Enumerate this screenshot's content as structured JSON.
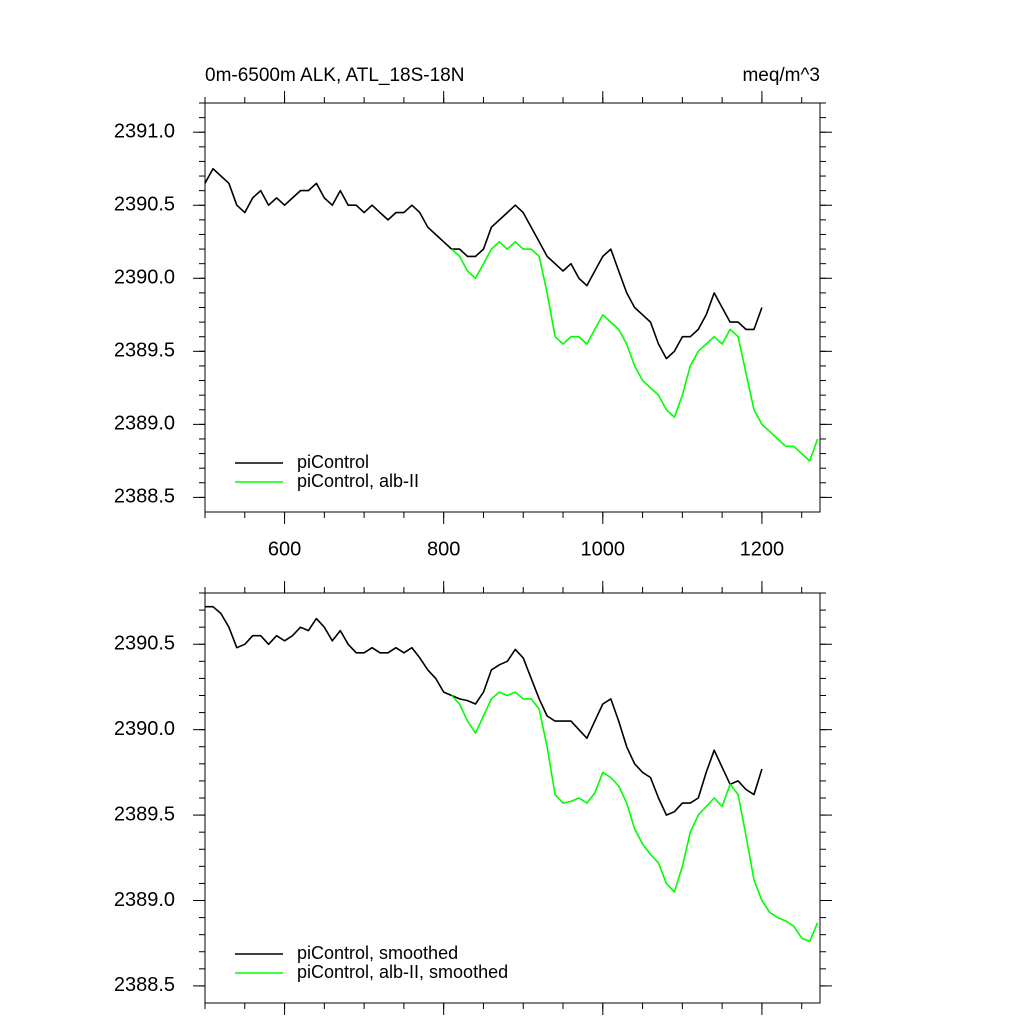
{
  "chart_data": [
    {
      "type": "line",
      "title": "0m-6500m ALK, ATL_18S-18N",
      "units": "meq/m^3",
      "xlim": [
        500,
        1273
      ],
      "ylim": [
        2388.4,
        2391.2
      ],
      "xticks": [
        600,
        800,
        1000,
        1200
      ],
      "x_tick_labels": true,
      "yticks": [
        {
          "value": 2388.5,
          "label": "2388.5"
        },
        {
          "value": 2389.0,
          "label": "2389.0"
        },
        {
          "value": 2389.5,
          "label": "2389.5"
        },
        {
          "value": 2390.0,
          "label": "2390.0"
        },
        {
          "value": 2390.5,
          "label": "2390.5"
        },
        {
          "value": 2391.0,
          "label": "2391.0"
        }
      ],
      "legend": "lower left",
      "series": [
        {
          "name": "piControl",
          "color": "#000000",
          "x": [
            500,
            510,
            520,
            530,
            540,
            550,
            560,
            570,
            580,
            590,
            600,
            610,
            620,
            630,
            640,
            650,
            660,
            670,
            680,
            690,
            700,
            710,
            720,
            730,
            740,
            750,
            760,
            770,
            780,
            790,
            800,
            810,
            820,
            830,
            840,
            850,
            860,
            870,
            880,
            890,
            900,
            910,
            920,
            930,
            940,
            950,
            960,
            970,
            980,
            990,
            1000,
            1010,
            1020,
            1030,
            1040,
            1050,
            1060,
            1070,
            1080,
            1090,
            1100,
            1110,
            1120,
            1130,
            1140,
            1150,
            1160,
            1170,
            1180,
            1190,
            1200
          ],
          "values": [
            2390.65,
            2390.75,
            2390.7,
            2390.65,
            2390.5,
            2390.45,
            2390.55,
            2390.6,
            2390.5,
            2390.55,
            2390.5,
            2390.55,
            2390.6,
            2390.6,
            2390.65,
            2390.55,
            2390.5,
            2390.6,
            2390.5,
            2390.5,
            2390.45,
            2390.5,
            2390.45,
            2390.4,
            2390.45,
            2390.45,
            2390.5,
            2390.45,
            2390.35,
            2390.3,
            2390.25,
            2390.2,
            2390.2,
            2390.15,
            2390.15,
            2390.2,
            2390.35,
            2390.4,
            2390.45,
            2390.5,
            2390.45,
            2390.35,
            2390.25,
            2390.15,
            2390.1,
            2390.05,
            2390.1,
            2390.0,
            2389.95,
            2390.05,
            2390.15,
            2390.2,
            2390.05,
            2389.9,
            2389.8,
            2389.75,
            2389.7,
            2389.55,
            2389.45,
            2389.5,
            2389.6,
            2389.6,
            2389.65,
            2389.75,
            2389.9,
            2389.8,
            2389.7,
            2389.7,
            2389.65,
            2389.65,
            2389.8
          ]
        },
        {
          "name": "piControl, alb-II",
          "color": "#00ff00",
          "x": [
            810,
            820,
            830,
            840,
            850,
            860,
            870,
            880,
            890,
            900,
            910,
            920,
            930,
            940,
            950,
            960,
            970,
            980,
            990,
            1000,
            1010,
            1020,
            1030,
            1040,
            1050,
            1060,
            1070,
            1080,
            1090,
            1100,
            1110,
            1120,
            1130,
            1140,
            1150,
            1160,
            1170,
            1180,
            1190,
            1200,
            1210,
            1220,
            1230,
            1240,
            1250,
            1260,
            1270
          ],
          "values": [
            2390.2,
            2390.15,
            2390.05,
            2390.0,
            2390.1,
            2390.2,
            2390.25,
            2390.2,
            2390.25,
            2390.2,
            2390.2,
            2390.15,
            2389.9,
            2389.6,
            2389.55,
            2389.6,
            2389.6,
            2389.55,
            2389.65,
            2389.75,
            2389.7,
            2389.65,
            2389.55,
            2389.4,
            2389.3,
            2389.25,
            2389.2,
            2389.1,
            2389.05,
            2389.2,
            2389.4,
            2389.5,
            2389.55,
            2389.6,
            2389.55,
            2389.65,
            2389.6,
            2389.35,
            2389.1,
            2389.0,
            2388.95,
            2388.9,
            2388.85,
            2388.85,
            2388.8,
            2388.75,
            2388.9
          ]
        }
      ]
    },
    {
      "type": "line",
      "xlim": [
        500,
        1273
      ],
      "ylim": [
        2388.4,
        2390.8
      ],
      "xticks": [
        600,
        800,
        1000,
        1200
      ],
      "x_tick_labels": false,
      "yticks": [
        {
          "value": 2388.5,
          "label": "2388.5"
        },
        {
          "value": 2389.0,
          "label": "2389.0"
        },
        {
          "value": 2389.5,
          "label": "2389.5"
        },
        {
          "value": 2390.0,
          "label": "2390.0"
        },
        {
          "value": 2390.5,
          "label": "2390.5"
        }
      ],
      "legend": "lower left",
      "series": [
        {
          "name": "piControl, smoothed",
          "color": "#000000",
          "x": [
            500,
            510,
            520,
            530,
            540,
            550,
            560,
            570,
            580,
            590,
            600,
            610,
            620,
            630,
            640,
            650,
            660,
            670,
            680,
            690,
            700,
            710,
            720,
            730,
            740,
            750,
            760,
            770,
            780,
            790,
            800,
            810,
            820,
            830,
            840,
            850,
            860,
            870,
            880,
            890,
            900,
            910,
            920,
            930,
            940,
            950,
            960,
            970,
            980,
            990,
            1000,
            1010,
            1020,
            1030,
            1040,
            1050,
            1060,
            1070,
            1080,
            1090,
            1100,
            1110,
            1120,
            1130,
            1140,
            1150,
            1160,
            1170,
            1180,
            1190,
            1200
          ],
          "values": [
            2390.72,
            2390.72,
            2390.68,
            2390.6,
            2390.48,
            2390.5,
            2390.55,
            2390.55,
            2390.5,
            2390.55,
            2390.52,
            2390.55,
            2390.6,
            2390.58,
            2390.65,
            2390.6,
            2390.52,
            2390.58,
            2390.5,
            2390.45,
            2390.45,
            2390.48,
            2390.45,
            2390.45,
            2390.48,
            2390.45,
            2390.48,
            2390.42,
            2390.35,
            2390.3,
            2390.22,
            2390.2,
            2390.18,
            2390.17,
            2390.15,
            2390.22,
            2390.35,
            2390.38,
            2390.4,
            2390.47,
            2390.42,
            2390.3,
            2390.18,
            2390.08,
            2390.05,
            2390.05,
            2390.05,
            2390.0,
            2389.95,
            2390.05,
            2390.15,
            2390.18,
            2390.05,
            2389.9,
            2389.8,
            2389.75,
            2389.72,
            2389.6,
            2389.5,
            2389.52,
            2389.57,
            2389.57,
            2389.6,
            2389.75,
            2389.88,
            2389.78,
            2389.68,
            2389.7,
            2389.65,
            2389.62,
            2389.77
          ]
        },
        {
          "name": "piControl, alb-II, smoothed",
          "color": "#00ff00",
          "x": [
            810,
            820,
            830,
            840,
            850,
            860,
            870,
            880,
            890,
            900,
            910,
            920,
            930,
            940,
            950,
            960,
            970,
            980,
            990,
            1000,
            1010,
            1020,
            1030,
            1040,
            1050,
            1060,
            1070,
            1080,
            1090,
            1100,
            1110,
            1120,
            1130,
            1140,
            1150,
            1160,
            1170,
            1180,
            1190,
            1200,
            1210,
            1220,
            1230,
            1240,
            1250,
            1260,
            1270
          ],
          "values": [
            2390.2,
            2390.15,
            2390.05,
            2389.98,
            2390.08,
            2390.18,
            2390.22,
            2390.2,
            2390.22,
            2390.18,
            2390.18,
            2390.12,
            2389.9,
            2389.62,
            2389.57,
            2389.58,
            2389.6,
            2389.57,
            2389.63,
            2389.75,
            2389.72,
            2389.67,
            2389.57,
            2389.42,
            2389.33,
            2389.27,
            2389.22,
            2389.1,
            2389.05,
            2389.2,
            2389.4,
            2389.5,
            2389.55,
            2389.6,
            2389.55,
            2389.68,
            2389.62,
            2389.38,
            2389.12,
            2389.0,
            2388.93,
            2388.9,
            2388.88,
            2388.85,
            2388.78,
            2388.76,
            2388.87
          ]
        }
      ]
    }
  ]
}
